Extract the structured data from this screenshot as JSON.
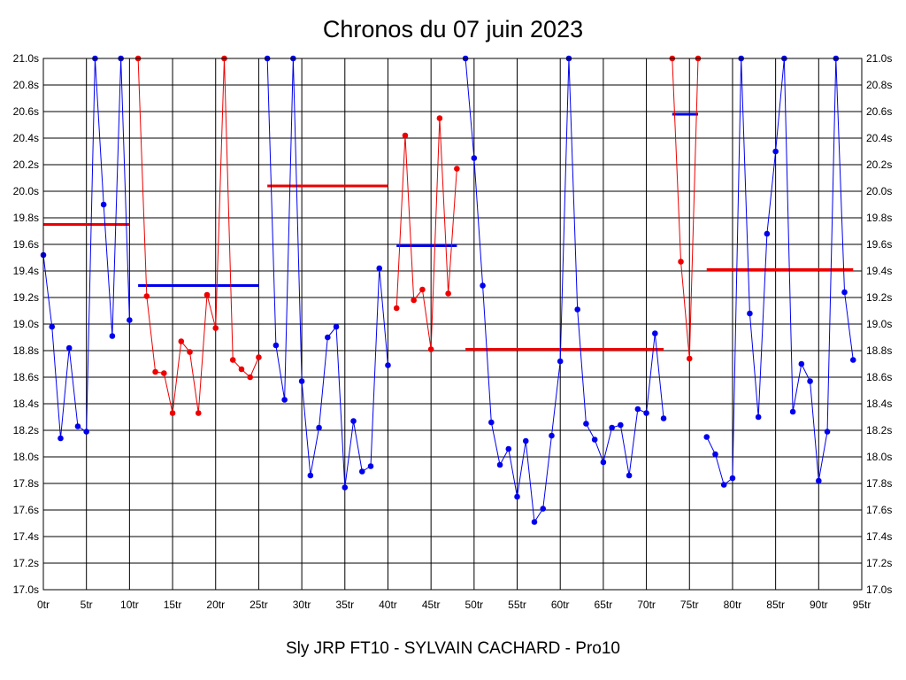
{
  "chart_data": {
    "type": "line",
    "title": "Chronos du 07 juin 2023",
    "footer": "Sly JRP FT10 - SYLVAIN CACHARD - Pro10",
    "xlabel": "",
    "ylabel": "",
    "xlim": [
      0,
      95
    ],
    "ylim": [
      17.0,
      21.0
    ],
    "grid": true,
    "x_ticks": [
      "0tr",
      "5tr",
      "10tr",
      "15tr",
      "20tr",
      "25tr",
      "30tr",
      "35tr",
      "40tr",
      "45tr",
      "50tr",
      "55tr",
      "60tr",
      "65tr",
      "70tr",
      "75tr",
      "80tr",
      "85tr",
      "90tr",
      "95tr"
    ],
    "y_ticks": [
      "17.0s",
      "17.2s",
      "17.4s",
      "17.6s",
      "17.8s",
      "18.0s",
      "18.2s",
      "18.4s",
      "18.6s",
      "18.8s",
      "19.0s",
      "19.2s",
      "19.4s",
      "19.6s",
      "19.8s",
      "20.0s",
      "20.2s",
      "20.4s",
      "20.6s",
      "20.8s",
      "21.0s"
    ],
    "colors": {
      "blue": "#0000ee",
      "red": "#ee0000"
    },
    "series": [
      {
        "color": "blue",
        "points": [
          [
            0,
            19.52
          ],
          [
            1,
            18.98
          ],
          [
            2,
            18.14
          ],
          [
            3,
            18.82
          ],
          [
            4,
            18.23
          ],
          [
            5,
            18.19
          ],
          [
            6,
            21.0
          ],
          [
            7,
            19.9
          ],
          [
            8,
            18.91
          ],
          [
            9,
            21.0
          ],
          [
            10,
            19.03
          ]
        ]
      },
      {
        "color": "red",
        "points": [
          [
            11,
            21.0
          ],
          [
            12,
            19.21
          ],
          [
            13,
            18.64
          ],
          [
            14,
            18.63
          ],
          [
            15,
            18.33
          ],
          [
            16,
            18.87
          ],
          [
            17,
            18.79
          ],
          [
            18,
            18.33
          ],
          [
            19,
            19.22
          ],
          [
            20,
            18.97
          ],
          [
            21,
            21.0
          ],
          [
            22,
            18.73
          ],
          [
            23,
            18.66
          ],
          [
            24,
            18.6
          ],
          [
            25,
            18.75
          ]
        ]
      },
      {
        "color": "blue",
        "points": [
          [
            26,
            21.0
          ],
          [
            27,
            18.84
          ],
          [
            28,
            18.43
          ],
          [
            29,
            21.0
          ],
          [
            30,
            18.57
          ],
          [
            31,
            17.86
          ],
          [
            32,
            18.22
          ],
          [
            33,
            18.9
          ],
          [
            34,
            18.98
          ],
          [
            35,
            17.77
          ],
          [
            36,
            18.27
          ],
          [
            37,
            17.89
          ],
          [
            38,
            17.93
          ],
          [
            39,
            19.42
          ],
          [
            40,
            18.69
          ]
        ]
      },
      {
        "color": "red",
        "points": [
          [
            41,
            19.12
          ],
          [
            42,
            20.42
          ],
          [
            43,
            19.18
          ],
          [
            44,
            19.26
          ],
          [
            45,
            18.81
          ],
          [
            46,
            20.55
          ],
          [
            47,
            19.23
          ],
          [
            48,
            20.17
          ]
        ]
      },
      {
        "color": "blue",
        "points": [
          [
            49,
            21.0
          ],
          [
            50,
            20.25
          ],
          [
            51,
            19.29
          ],
          [
            52,
            18.26
          ],
          [
            53,
            17.94
          ],
          [
            54,
            18.06
          ],
          [
            55,
            17.7
          ],
          [
            56,
            18.12
          ],
          [
            57,
            17.51
          ],
          [
            58,
            17.61
          ],
          [
            59,
            18.16
          ],
          [
            60,
            18.72
          ],
          [
            61,
            21.0
          ],
          [
            62,
            19.11
          ],
          [
            63,
            18.25
          ],
          [
            64,
            18.13
          ],
          [
            65,
            17.96
          ],
          [
            66,
            18.22
          ],
          [
            67,
            18.24
          ],
          [
            68,
            17.86
          ],
          [
            69,
            18.36
          ],
          [
            70,
            18.33
          ],
          [
            71,
            18.93
          ],
          [
            72,
            18.29
          ]
        ]
      },
      {
        "color": "red",
        "points": [
          [
            73,
            21.0
          ],
          [
            74,
            19.47
          ],
          [
            75,
            18.74
          ],
          [
            76,
            21.0
          ]
        ]
      },
      {
        "color": "blue",
        "points": [
          [
            77,
            18.15
          ],
          [
            78,
            18.02
          ],
          [
            79,
            17.79
          ],
          [
            80,
            17.84
          ],
          [
            81,
            21.0
          ],
          [
            82,
            19.08
          ],
          [
            83,
            18.3
          ],
          [
            84,
            19.68
          ],
          [
            85,
            20.3
          ],
          [
            86,
            21.0
          ],
          [
            87,
            18.34
          ],
          [
            88,
            18.7
          ],
          [
            89,
            18.57
          ],
          [
            90,
            17.82
          ],
          [
            91,
            18.19
          ],
          [
            92,
            21.0
          ],
          [
            93,
            19.24
          ],
          [
            94,
            18.73
          ]
        ]
      }
    ],
    "average_lines": [
      {
        "color": "red",
        "x": [
          0,
          10
        ],
        "y": 19.75
      },
      {
        "color": "blue",
        "x": [
          11,
          25
        ],
        "y": 19.29
      },
      {
        "color": "red",
        "x": [
          26,
          40
        ],
        "y": 20.04
      },
      {
        "color": "blue",
        "x": [
          41,
          48
        ],
        "y": 19.59
      },
      {
        "color": "red",
        "x": [
          49,
          72
        ],
        "y": 18.81
      },
      {
        "color": "blue",
        "x": [
          73,
          76
        ],
        "y": 20.58
      },
      {
        "color": "red",
        "x": [
          77,
          94
        ],
        "y": 19.41
      }
    ]
  }
}
